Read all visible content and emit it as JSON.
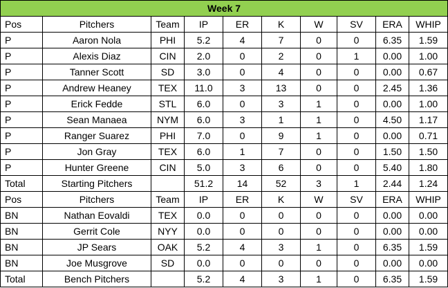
{
  "title": "Week 7",
  "headers": [
    "Pos",
    "Pitchers",
    "Team",
    "IP",
    "ER",
    "K",
    "W",
    "SV",
    "ERA",
    "WHIP"
  ],
  "starting": {
    "rows": [
      [
        "P",
        "Aaron Nola",
        "PHI",
        "5.2",
        "4",
        "7",
        "0",
        "0",
        "6.35",
        "1.59"
      ],
      [
        "P",
        "Alexis Diaz",
        "CIN",
        "2.0",
        "0",
        "2",
        "0",
        "1",
        "0.00",
        "1.00"
      ],
      [
        "P",
        "Tanner Scott",
        "SD",
        "3.0",
        "0",
        "4",
        "0",
        "0",
        "0.00",
        "0.67"
      ],
      [
        "P",
        "Andrew Heaney",
        "TEX",
        "11.0",
        "3",
        "13",
        "0",
        "0",
        "2.45",
        "1.36"
      ],
      [
        "P",
        "Erick Fedde",
        "STL",
        "6.0",
        "0",
        "3",
        "1",
        "0",
        "0.00",
        "1.00"
      ],
      [
        "P",
        "Sean Manaea",
        "NYM",
        "6.0",
        "3",
        "1",
        "1",
        "0",
        "4.50",
        "1.17"
      ],
      [
        "P",
        "Ranger Suarez",
        "PHI",
        "7.0",
        "0",
        "9",
        "1",
        "0",
        "0.00",
        "0.71"
      ],
      [
        "P",
        "Jon Gray",
        "TEX",
        "6.0",
        "1",
        "7",
        "0",
        "0",
        "1.50",
        "1.50"
      ],
      [
        "P",
        "Hunter Greene",
        "CIN",
        "5.0",
        "3",
        "6",
        "0",
        "0",
        "5.40",
        "1.80"
      ]
    ],
    "total": [
      "Total",
      "Starting Pitchers",
      "",
      "51.2",
      "14",
      "52",
      "3",
      "1",
      "2.44",
      "1.24"
    ]
  },
  "bench": {
    "rows": [
      [
        "BN",
        "Nathan Eovaldi",
        "TEX",
        "0.0",
        "0",
        "0",
        "0",
        "0",
        "0.00",
        "0.00"
      ],
      [
        "BN",
        "Gerrit Cole",
        "NYY",
        "0.0",
        "0",
        "0",
        "0",
        "0",
        "0.00",
        "0.00"
      ],
      [
        "BN",
        "JP Sears",
        "OAK",
        "5.2",
        "4",
        "3",
        "1",
        "0",
        "6.35",
        "1.59"
      ],
      [
        "BN",
        "Joe Musgrove",
        "SD",
        "0.0",
        "0",
        "0",
        "0",
        "0",
        "0.00",
        "0.00"
      ]
    ],
    "total": [
      "Total",
      "Bench Pitchers",
      "",
      "5.2",
      "4",
      "3",
      "1",
      "0",
      "6.35",
      "1.59"
    ]
  },
  "colors": {
    "title_background": "#92d050",
    "border": "#000000"
  }
}
